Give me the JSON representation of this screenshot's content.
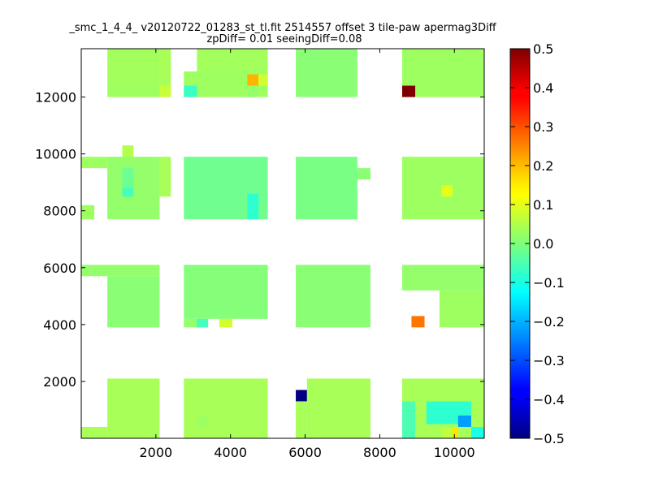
{
  "chart_data": {
    "type": "heatmap",
    "title_line1": "_smc_1_4_4_ v20120722_01283_st_tl.fit 2514557 offset 3 tile-paw apermag3Diff",
    "title_line2": "zpDiff= 0.01 seeingDiff=0.08",
    "xlim": [
      0,
      10800
    ],
    "ylim": [
      0,
      13700
    ],
    "x_ticks": [
      2000,
      4000,
      6000,
      8000,
      10000
    ],
    "y_ticks": [
      2000,
      4000,
      6000,
      8000,
      10000,
      12000
    ],
    "colorbar": {
      "colormap": "jet",
      "range": [
        -0.5,
        0.5
      ],
      "ticks": [
        0.5,
        0.4,
        0.3,
        0.2,
        0.1,
        0.0,
        -0.1,
        -0.2,
        -0.3,
        -0.4,
        -0.5
      ],
      "tick_labels": [
        "0.5",
        "0.4",
        "0.3",
        "0.2",
        "0.1",
        "0.0",
        "−0.1",
        "−0.2",
        "−0.3",
        "−0.4",
        "−0.5"
      ]
    },
    "cells": [
      {
        "x": [
          700,
          2400
        ],
        "y": [
          12000,
          12400
        ],
        "value": 0.03
      },
      {
        "x": [
          700,
          2100
        ],
        "y": [
          12400,
          13700
        ],
        "value": 0.035
      },
      {
        "x": [
          2100,
          2400
        ],
        "y": [
          12400,
          13700
        ],
        "value": 0.04
      },
      {
        "x": [
          2100,
          2400
        ],
        "y": [
          12000,
          12400
        ],
        "value": 0.07
      },
      {
        "x": [
          1100,
          1400
        ],
        "y": [
          9500,
          10300
        ],
        "value": 0.05
      },
      {
        "x": [
          0,
          700
        ],
        "y": [
          9500,
          9900
        ],
        "value": 0.03
      },
      {
        "x": [
          700,
          2100
        ],
        "y": [
          7700,
          9900
        ],
        "value": 0.02
      },
      {
        "x": [
          1100,
          1400
        ],
        "y": [
          8500,
          9500
        ],
        "value": -0.02
      },
      {
        "x": [
          1100,
          1400
        ],
        "y": [
          8500,
          8800
        ],
        "value": -0.06
      },
      {
        "x": [
          2100,
          2400
        ],
        "y": [
          8500,
          9900
        ],
        "value": 0.04
      },
      {
        "x": [
          0,
          350
        ],
        "y": [
          7700,
          8200
        ],
        "value": 0.03
      },
      {
        "x": [
          0,
          2100
        ],
        "y": [
          5700,
          6100
        ],
        "value": 0.02
      },
      {
        "x": [
          700,
          2100
        ],
        "y": [
          3900,
          5700
        ],
        "value": 0.01
      },
      {
        "x": [
          700,
          2100
        ],
        "y": [
          0,
          2100
        ],
        "value": 0.04
      },
      {
        "x": [
          0,
          700
        ],
        "y": [
          0,
          400
        ],
        "value": 0.04
      },
      {
        "x": [
          2750,
          5000
        ],
        "y": [
          12000,
          12900
        ],
        "value": 0.03
      },
      {
        "x": [
          3100,
          5000
        ],
        "y": [
          12900,
          13700
        ],
        "value": 0.035
      },
      {
        "x": [
          2750,
          3100
        ],
        "y": [
          12000,
          12400
        ],
        "value": -0.07
      },
      {
        "x": [
          4450,
          4750
        ],
        "y": [
          12000,
          12400
        ],
        "value": 0.02
      },
      {
        "x": [
          4450,
          4750
        ],
        "y": [
          12400,
          12800
        ],
        "value": 0.2
      },
      {
        "x": [
          4750,
          5000
        ],
        "y": [
          12400,
          12800
        ],
        "value": 0.08
      },
      {
        "x": [
          2750,
          5000
        ],
        "y": [
          7700,
          9900
        ],
        "value": -0.015
      },
      {
        "x": [
          4450,
          4750
        ],
        "y": [
          7700,
          8600
        ],
        "value": -0.08
      },
      {
        "x": [
          2750,
          5000
        ],
        "y": [
          4200,
          6100
        ],
        "value": 0.005
      },
      {
        "x": [
          2750,
          3400
        ],
        "y": [
          3900,
          4200
        ],
        "value": 0.02
      },
      {
        "x": [
          3100,
          3400
        ],
        "y": [
          3900,
          4200
        ],
        "value": -0.06
      },
      {
        "x": [
          3700,
          4050
        ],
        "y": [
          3900,
          4200
        ],
        "value": 0.08
      },
      {
        "x": [
          2750,
          5000
        ],
        "y": [
          0,
          2100
        ],
        "value": 0.04
      },
      {
        "x": [
          3100,
          3400
        ],
        "y": [
          400,
          800
        ],
        "value": 0.03
      },
      {
        "x": [
          5750,
          7400
        ],
        "y": [
          12000,
          13700
        ],
        "value": 0.01
      },
      {
        "x": [
          5750,
          7400
        ],
        "y": [
          7700,
          9900
        ],
        "value": -0.005
      },
      {
        "x": [
          7400,
          7750
        ],
        "y": [
          9100,
          9500
        ],
        "value": 0.01
      },
      {
        "x": [
          5750,
          7750
        ],
        "y": [
          3900,
          6100
        ],
        "value": 0.01
      },
      {
        "x": [
          5750,
          6050
        ],
        "y": [
          1300,
          1700
        ],
        "value": -0.5
      },
      {
        "x": [
          5750,
          6050
        ],
        "y": [
          0,
          1300
        ],
        "value": 0.04
      },
      {
        "x": [
          6050,
          7750
        ],
        "y": [
          0,
          2100
        ],
        "value": 0.04
      },
      {
        "x": [
          8600,
          10800
        ],
        "y": [
          12000,
          13700
        ],
        "value": 0.03
      },
      {
        "x": [
          8600,
          8950
        ],
        "y": [
          12000,
          12400
        ],
        "value": 0.5
      },
      {
        "x": [
          8600,
          10800
        ],
        "y": [
          7700,
          9900
        ],
        "value": 0.03
      },
      {
        "x": [
          9650,
          9950
        ],
        "y": [
          8500,
          8900
        ],
        "value": 0.1
      },
      {
        "x": [
          8600,
          10800
        ],
        "y": [
          5200,
          6100
        ],
        "value": 0.02
      },
      {
        "x": [
          9600,
          10800
        ],
        "y": [
          3900,
          5200
        ],
        "value": 0.03
      },
      {
        "x": [
          8850,
          9200
        ],
        "y": [
          3900,
          4300
        ],
        "value": 0.26
      },
      {
        "x": [
          8600,
          10800
        ],
        "y": [
          0,
          2100
        ],
        "value": 0.04
      },
      {
        "x": [
          8600,
          8950
        ],
        "y": [
          0,
          1300
        ],
        "value": -0.05
      },
      {
        "x": [
          9250,
          10450
        ],
        "y": [
          500,
          1300
        ],
        "value": -0.08
      },
      {
        "x": [
          10100,
          10450
        ],
        "y": [
          400,
          800
        ],
        "value": -0.22
      },
      {
        "x": [
          9650,
          10100
        ],
        "y": [
          0,
          400
        ],
        "value": 0.06
      },
      {
        "x": [
          9950,
          10100
        ],
        "y": [
          0,
          400
        ],
        "value": 0.15
      },
      {
        "x": [
          10450,
          10800
        ],
        "y": [
          0,
          400
        ],
        "value": -0.1
      }
    ]
  }
}
